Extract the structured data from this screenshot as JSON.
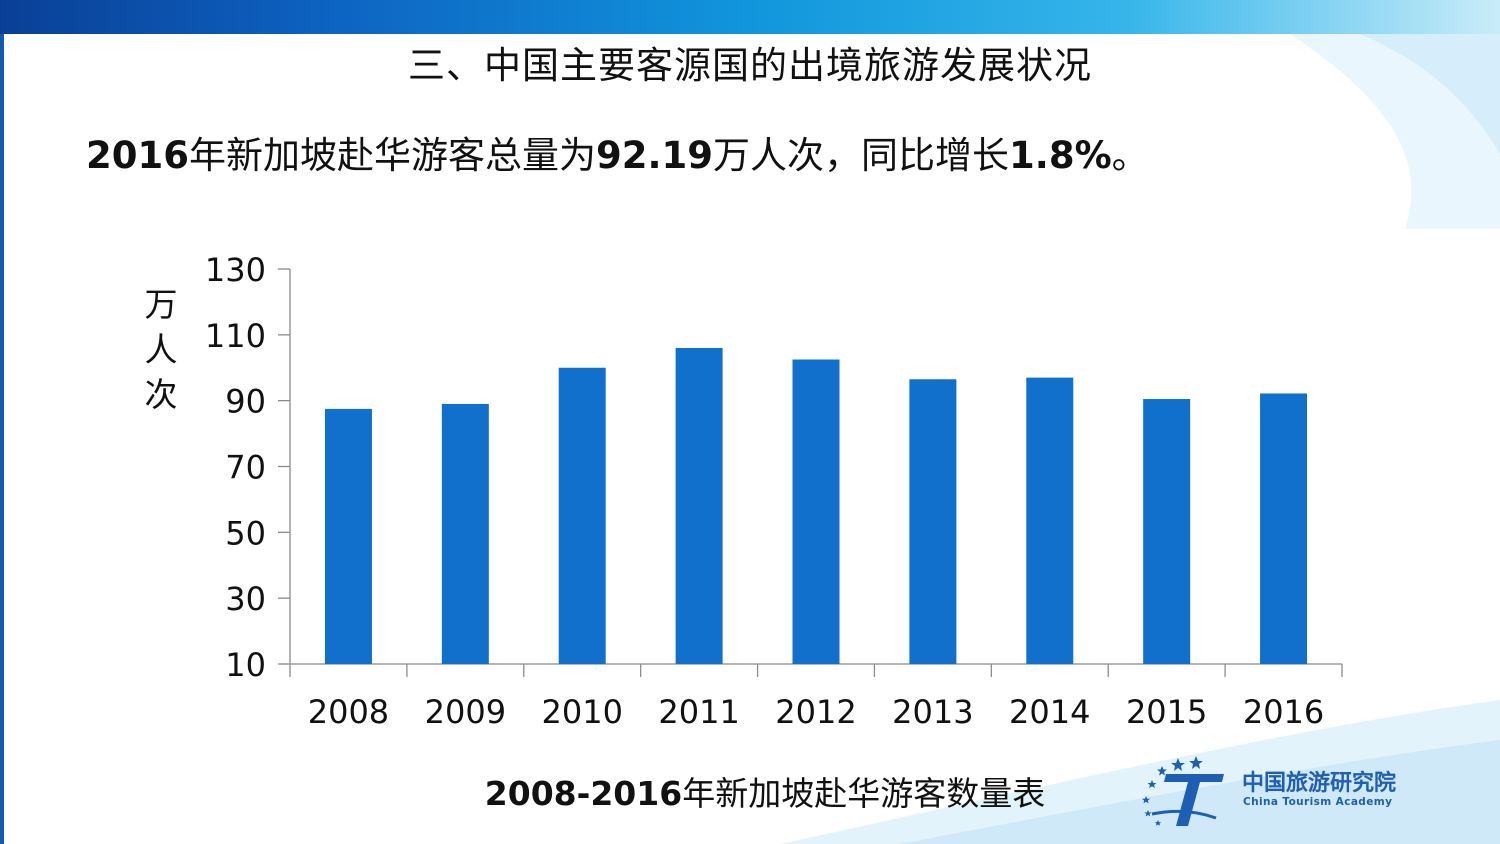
{
  "slide": {
    "title": "三、中国主要客源国的出境旅游发展状况",
    "headline": {
      "part1": "2016",
      "part2": "年新加坡赴华游客总量为",
      "part3": "92.19",
      "part4": "万人次，同比增长",
      "part5": "1.8%",
      "part6": "。"
    },
    "caption": {
      "years": "2008-2016",
      "text": "年新加坡赴华游客数量表"
    }
  },
  "logo": {
    "name_cn": "中国旅游研究院",
    "name_en": "China Tourism Academy"
  },
  "colors": {
    "bar": "#1170cc",
    "band_start": "#0a3f96",
    "band_end": "#c9ecf9",
    "logo": "#1f5fb3"
  },
  "chart_data": {
    "type": "bar",
    "categories": [
      "2008",
      "2009",
      "2010",
      "2011",
      "2012",
      "2013",
      "2014",
      "2015",
      "2016"
    ],
    "values": [
      87.5,
      89,
      100,
      106,
      102.5,
      96.5,
      97,
      90.5,
      92.19
    ],
    "title": "",
    "xlabel": "",
    "ylabel": "万人次",
    "ylim": [
      10,
      130
    ],
    "yticks": [
      10,
      30,
      50,
      70,
      90,
      110,
      130
    ],
    "grid": false,
    "legend": "none"
  }
}
